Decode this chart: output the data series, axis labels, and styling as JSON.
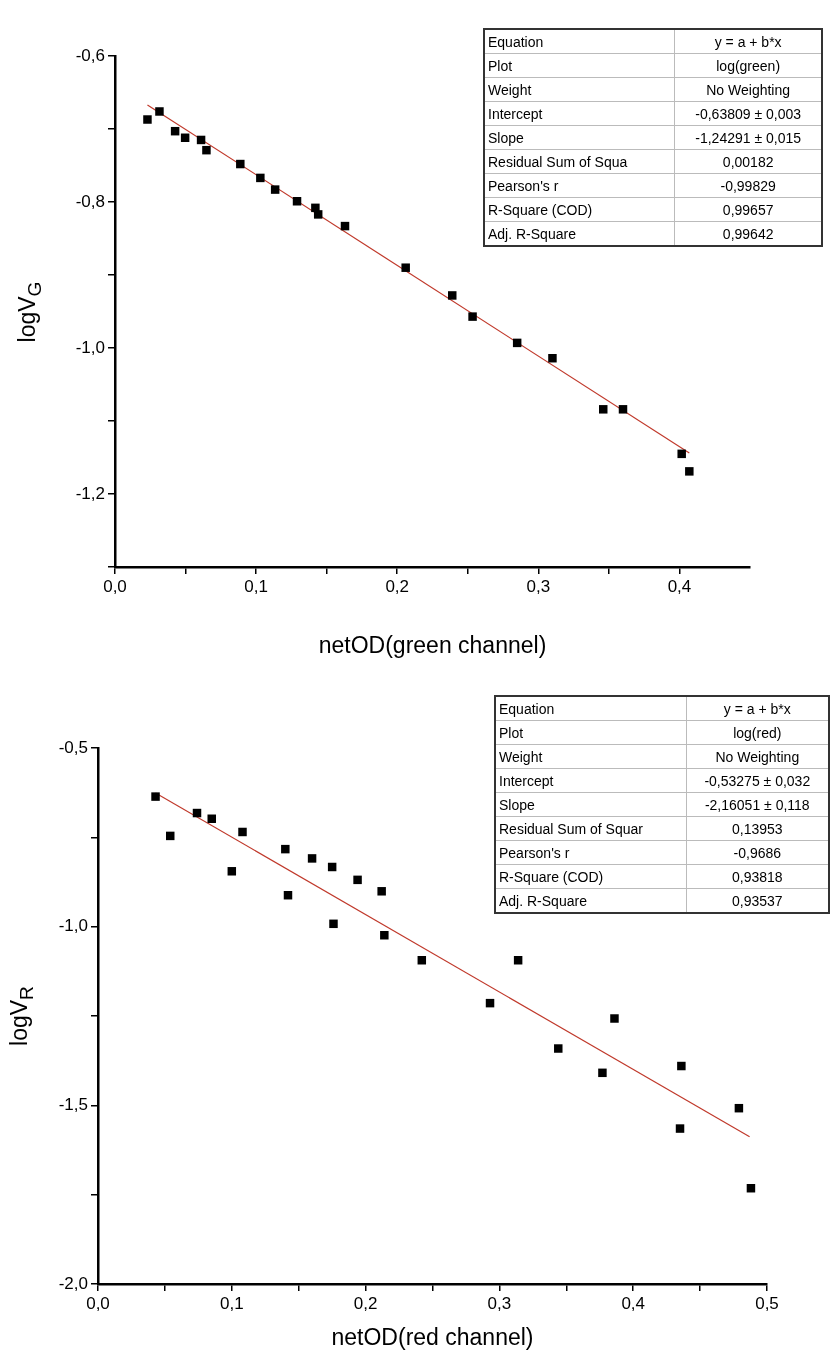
{
  "chart_data": [
    {
      "type": "scatter",
      "xlabel": "netOD(green channel)",
      "ylabel": "logV$_{G}$",
      "grid": false,
      "legend": false,
      "xlim": [
        0,
        0.45
      ],
      "ylim": [
        -1.3,
        -0.6
      ],
      "xticks": [
        {
          "value": 0,
          "label": "0,0"
        },
        {
          "value": 0.05,
          "label": null
        },
        {
          "value": 0.1,
          "label": "0,1"
        },
        {
          "value": 0.15,
          "label": null
        },
        {
          "value": 0.2,
          "label": "0,2"
        },
        {
          "value": 0.25,
          "label": null
        },
        {
          "value": 0.3,
          "label": "0,3"
        },
        {
          "value": 0.35,
          "label": null
        },
        {
          "value": 0.4,
          "label": "0,4"
        }
      ],
      "yticks": [
        {
          "value": -1.3,
          "label": null
        },
        {
          "value": -1.2,
          "label": "-1,2"
        },
        {
          "value": -1.1,
          "label": null
        },
        {
          "value": -1.0,
          "label": "-1,0"
        },
        {
          "value": -0.9,
          "label": null
        },
        {
          "value": -0.8,
          "label": "-0,8"
        },
        {
          "value": -0.7,
          "label": null
        },
        {
          "value": -0.6,
          "label": "-0,6"
        }
      ],
      "series": [
        {
          "marker": "square",
          "color": "#000000",
          "x": [
            0.023,
            0.0315,
            0.0426,
            0.0497,
            0.061,
            0.0648,
            0.0888,
            0.103,
            0.1135,
            0.129,
            0.142,
            0.144,
            0.163,
            0.206,
            0.239,
            0.2534,
            0.285,
            0.31,
            0.346,
            0.36,
            0.4016,
            0.407
          ],
          "values": [
            -0.687,
            -0.676,
            -0.703,
            -0.712,
            -0.715,
            -0.729,
            -0.748,
            -0.767,
            -0.783,
            -0.799,
            -0.808,
            -0.817,
            -0.833,
            -0.89,
            -0.928,
            -0.957,
            -0.993,
            -1.014,
            -1.084,
            -1.084,
            -1.145,
            -1.169
          ]
        },
        {
          "type": "line",
          "marker": "none",
          "color": "#c0392b",
          "x": [
            0.023,
            0.407
          ],
          "values": [
            -0.667,
            -1.144
          ]
        }
      ],
      "annotations": [
        "Equation",
        "y = a + b*x",
        "Plot",
        "log(green)",
        "Weight",
        "No Weighting",
        "Intercept",
        "-0,63809 ± 0,003",
        "Slope",
        "-1,24291 ± 0,015",
        "Residual Sum of Squa",
        "0,00182",
        "Pearson's r",
        "-0,99829",
        "R-Square (COD)",
        "0,99657",
        "Adj. R-Square",
        "0,99642"
      ]
    },
    {
      "type": "scatter",
      "xlabel": "netOD(red channel)",
      "ylabel": "logV$_{R}$",
      "grid": false,
      "legend": false,
      "xlim": [
        0,
        0.5
      ],
      "ylim": [
        -2.0,
        -0.5
      ],
      "xticks": [
        {
          "value": 0,
          "label": "0,0"
        },
        {
          "value": 0.05,
          "label": null
        },
        {
          "value": 0.1,
          "label": "0,1"
        },
        {
          "value": 0.15,
          "label": null
        },
        {
          "value": 0.2,
          "label": "0,2"
        },
        {
          "value": 0.25,
          "label": null
        },
        {
          "value": 0.3,
          "label": "0,3"
        },
        {
          "value": 0.35,
          "label": null
        },
        {
          "value": 0.4,
          "label": "0,4"
        },
        {
          "value": 0.45,
          "label": null
        },
        {
          "value": 0.5,
          "label": "0,5"
        }
      ],
      "yticks": [
        {
          "value": -2.0,
          "label": "-2,0"
        },
        {
          "value": -1.75,
          "label": null
        },
        {
          "value": -1.5,
          "label": "-1,5"
        },
        {
          "value": -1.25,
          "label": null
        },
        {
          "value": -1.0,
          "label": "-1,0"
        },
        {
          "value": -0.75,
          "label": null
        },
        {
          "value": -0.5,
          "label": "-0,5"
        }
      ],
      "series": [
        {
          "marker": "square",
          "color": "#000000",
          "x": [
            0.043,
            0.054,
            0.074,
            0.085,
            0.1,
            0.108,
            0.14,
            0.142,
            0.16,
            0.175,
            0.176,
            0.194,
            0.212,
            0.214,
            0.242,
            0.293,
            0.314,
            0.344,
            0.377,
            0.386,
            0.435,
            0.436,
            0.479,
            0.488
          ],
          "values": [
            -0.636,
            -0.746,
            -0.682,
            -0.698,
            -0.845,
            -0.735,
            -0.783,
            -0.912,
            -0.809,
            -0.833,
            -0.992,
            -0.869,
            -0.901,
            -1.024,
            -1.094,
            -1.214,
            -1.094,
            -1.341,
            -1.409,
            -1.257,
            -1.565,
            -1.39,
            -1.508,
            -1.732
          ]
        },
        {
          "type": "line",
          "marker": "none",
          "color": "#c0392b",
          "x": [
            0.043,
            0.487
          ],
          "values": [
            -0.626,
            -1.588
          ]
        }
      ],
      "annotations": [
        "Equation",
        "y = a + b*x",
        "Plot",
        "log(red)",
        "Weight",
        "No Weighting",
        "Intercept",
        "-0,53275 ± 0,032",
        "Slope",
        "-2,16051 ± 0,118",
        "Residual Sum of Squar",
        "0,13953",
        "Pearson's r",
        "-0,9686",
        "R-Square (COD)",
        "0,93818",
        "Adj. R-Square",
        "0,93537"
      ]
    }
  ]
}
